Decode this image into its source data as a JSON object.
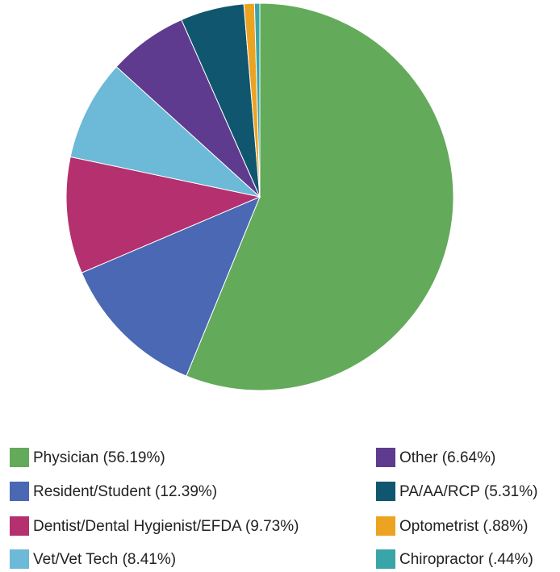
{
  "chart_data": {
    "type": "pie",
    "categories": [
      "Physician (56.19%)",
      "Resident/Student (12.39%)",
      "Dentist/Dental Hygienist/EFDA (9.73%)",
      "Vet/Vet Tech (8.41%)",
      "Other (6.64%)",
      "PA/AA/RCP (5.31%)",
      "Optometrist (.88%)",
      "Chiropractor (.44%)"
    ],
    "values": [
      56.19,
      12.39,
      9.73,
      8.41,
      6.64,
      5.31,
      0.88,
      0.44
    ],
    "colors": [
      "#63aa5a",
      "#4a68b3",
      "#b5306e",
      "#6cb9d8",
      "#5e3b8f",
      "#0f566e",
      "#eda322",
      "#3aa5a8"
    ]
  }
}
